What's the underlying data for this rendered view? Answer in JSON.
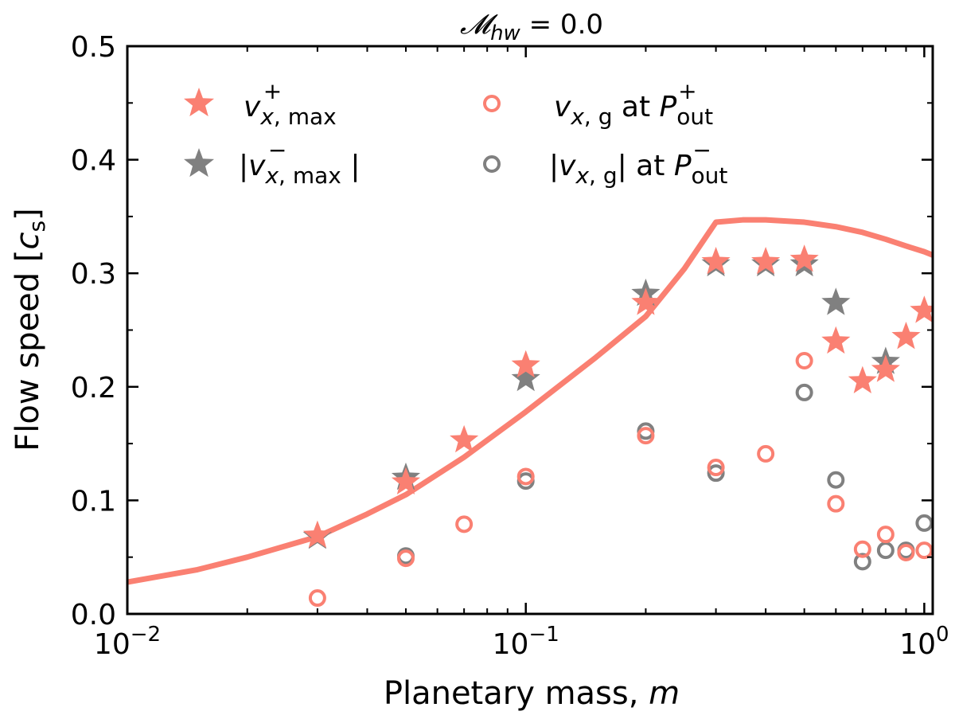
{
  "chart_data": {
    "type": "scatter",
    "title": "𝓜hw = 0.0",
    "xlabel": "Planetary mass, m",
    "ylabel": "Flow speed [cs]",
    "xscale": "log",
    "xlim": [
      0.01,
      1.05
    ],
    "ylim": [
      0.0,
      0.5
    ],
    "xticks": [
      {
        "value": 0.01,
        "label": "10−2"
      },
      {
        "value": 0.1,
        "label": "10−1"
      },
      {
        "value": 1,
        "label": "100"
      }
    ],
    "yticks": [
      0.0,
      0.1,
      0.2,
      0.3,
      0.4,
      0.5
    ],
    "ytick_labels": [
      "0.0",
      "0.1",
      "0.2",
      "0.3",
      "0.4",
      "0.5"
    ],
    "grid": false,
    "legend_position": "top-left",
    "colors": {
      "salmon": "#fa8072",
      "gray": "#808080"
    },
    "curve": {
      "color": "#fa8072",
      "x": [
        0.01,
        0.015,
        0.02,
        0.03,
        0.04,
        0.05,
        0.07,
        0.1,
        0.15,
        0.2,
        0.25,
        0.3,
        0.35,
        0.4,
        0.5,
        0.6,
        0.7,
        0.8,
        0.9,
        1.0,
        1.05
      ],
      "y": [
        0.028,
        0.039,
        0.05,
        0.068,
        0.088,
        0.105,
        0.138,
        0.178,
        0.226,
        0.262,
        0.304,
        0.345,
        0.347,
        0.347,
        0.345,
        0.341,
        0.336,
        0.33,
        0.324,
        0.319,
        0.316
      ]
    },
    "series": [
      {
        "name": "v+x,max",
        "marker": "star",
        "color": "#fa8072",
        "x": [
          0.03,
          0.05,
          0.07,
          0.1,
          0.2,
          0.3,
          0.4,
          0.5,
          0.6,
          0.7,
          0.8,
          0.9,
          1.0
        ],
        "y": [
          0.069,
          0.116,
          0.153,
          0.219,
          0.274,
          0.31,
          0.31,
          0.312,
          0.24,
          0.205,
          0.215,
          0.244,
          0.267
        ]
      },
      {
        "name": "|v−x,max|",
        "marker": "star",
        "color": "#808080",
        "x": [
          0.03,
          0.05,
          0.1,
          0.2,
          0.3,
          0.4,
          0.5,
          0.6,
          0.8
        ],
        "y": [
          0.068,
          0.12,
          0.207,
          0.282,
          0.308,
          0.308,
          0.308,
          0.274,
          0.222
        ]
      },
      {
        "name": "vx,g at P+out",
        "marker": "circle",
        "color": "#fa8072",
        "x": [
          0.03,
          0.05,
          0.07,
          0.1,
          0.2,
          0.3,
          0.4,
          0.5,
          0.6,
          0.7,
          0.8,
          0.9,
          1.0
        ],
        "y": [
          0.014,
          0.049,
          0.079,
          0.121,
          0.157,
          0.129,
          0.141,
          0.223,
          0.097,
          0.057,
          0.07,
          0.054,
          0.056
        ]
      },
      {
        "name": "|vx,g| at P−out",
        "marker": "circle",
        "color": "#808080",
        "x": [
          0.05,
          0.1,
          0.2,
          0.3,
          0.5,
          0.6,
          0.7,
          0.8,
          0.9,
          1.0
        ],
        "y": [
          0.051,
          0.117,
          0.161,
          0.124,
          0.195,
          0.118,
          0.046,
          0.056,
          0.056,
          0.08
        ]
      }
    ]
  }
}
